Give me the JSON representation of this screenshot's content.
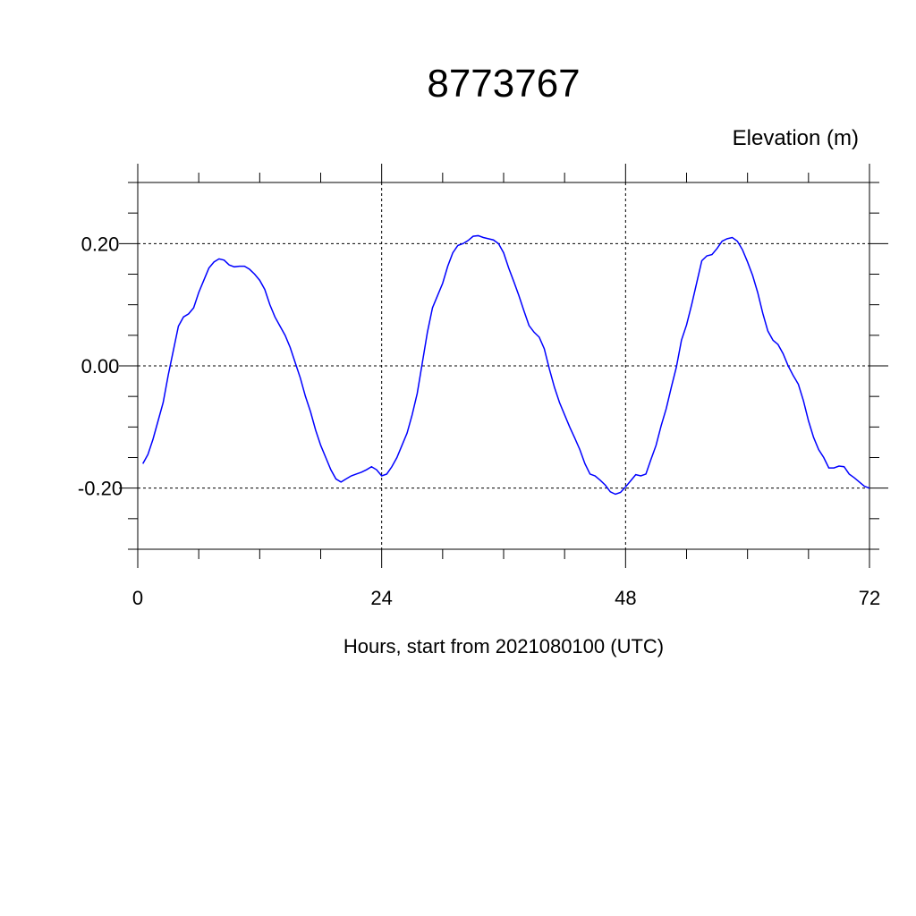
{
  "chart_data": {
    "type": "line",
    "title": "8773767",
    "subtitle": "Elevation (m)",
    "x_label": "Hours, start from 2021080100 (UTC)",
    "xlim": [
      0,
      72
    ],
    "xticks": [
      0,
      24,
      48,
      72
    ],
    "ylim": [
      -0.3,
      0.3
    ],
    "yticks": [
      {
        "value": -0.2,
        "label": "-0.20"
      },
      {
        "value": 0,
        "label": "0.00"
      },
      {
        "value": 0.2,
        "label": "0.20"
      }
    ],
    "grid": true,
    "series": [
      {
        "color": "#0000ff",
        "x": [
          0.5,
          1,
          1.5,
          2,
          2.5,
          3,
          3.5,
          4,
          4.5,
          5,
          5.5,
          6,
          6.5,
          7,
          7.5,
          8,
          8.5,
          9,
          9.5,
          10,
          10.5,
          11,
          11.5,
          12,
          12.5,
          13,
          13.5,
          14,
          14.5,
          15,
          15.5,
          16,
          16.5,
          17,
          17.5,
          18,
          18.5,
          19,
          19.5,
          20,
          20.5,
          21,
          21.5,
          22,
          22.5,
          23,
          23.5,
          24,
          24.5,
          25,
          25.5,
          26,
          26.5,
          27,
          27.5,
          28,
          28.5,
          29,
          29.5,
          30,
          30.5,
          31,
          31.5,
          32,
          32.5,
          33,
          33.5,
          34,
          34.5,
          35,
          35.5,
          36,
          36.5,
          37,
          37.5,
          38,
          38.5,
          39,
          39.5,
          40,
          40.5,
          41,
          41.5,
          42,
          42.5,
          43,
          43.5,
          44,
          44.5,
          45,
          45.5,
          46,
          46.5,
          47,
          47.5,
          48,
          48.5,
          49,
          49.5,
          50,
          50.5,
          51,
          51.5,
          52,
          52.5,
          53,
          53.5,
          54,
          54.5,
          55,
          55.5,
          56,
          56.5,
          57,
          57.5,
          58,
          58.5,
          59,
          59.5,
          60,
          60.5,
          61,
          61.5,
          62,
          62.5,
          63,
          63.5,
          64,
          64.5,
          65,
          65.5,
          66,
          66.5,
          67,
          67.5,
          68,
          68.5,
          69,
          69.5,
          70,
          70.5,
          71,
          71.5,
          72
        ],
        "values": [
          -0.16,
          -0.145,
          -0.12,
          -0.09,
          -0.06,
          -0.015,
          0.025,
          0.065,
          0.08,
          0.085,
          0.095,
          0.12,
          0.14,
          0.16,
          0.17,
          0.175,
          0.173,
          0.165,
          0.162,
          0.163,
          0.163,
          0.158,
          0.15,
          0.14,
          0.125,
          0.1,
          0.08,
          0.065,
          0.05,
          0.03,
          0.005,
          -0.02,
          -0.05,
          -0.075,
          -0.105,
          -0.13,
          -0.15,
          -0.17,
          -0.185,
          -0.19,
          -0.185,
          -0.18,
          -0.177,
          -0.174,
          -0.17,
          -0.165,
          -0.17,
          -0.18,
          -0.177,
          -0.165,
          -0.15,
          -0.13,
          -0.11,
          -0.08,
          -0.045,
          0.005,
          0.055,
          0.095,
          0.115,
          0.135,
          0.163,
          0.185,
          0.197,
          0.2,
          0.205,
          0.212,
          0.213,
          0.21,
          0.208,
          0.206,
          0.2,
          0.185,
          0.16,
          0.138,
          0.115,
          0.09,
          0.066,
          0.055,
          0.047,
          0.028,
          -0.005,
          -0.035,
          -0.06,
          -0.08,
          -0.1,
          -0.118,
          -0.137,
          -0.16,
          -0.177,
          -0.18,
          -0.187,
          -0.195,
          -0.206,
          -0.21,
          -0.207,
          -0.198,
          -0.188,
          -0.178,
          -0.18,
          -0.177,
          -0.153,
          -0.13,
          -0.098,
          -0.07,
          -0.035,
          -0.002,
          0.042,
          0.067,
          0.1,
          0.136,
          0.172,
          0.18,
          0.182,
          0.192,
          0.204,
          0.208,
          0.21,
          0.204,
          0.19,
          0.17,
          0.148,
          0.12,
          0.086,
          0.057,
          0.042,
          0.035,
          0.02,
          0,
          -0.016,
          -0.03,
          -0.057,
          -0.09,
          -0.117,
          -0.137,
          -0.15,
          -0.167,
          -0.167,
          -0.164,
          -0.165,
          -0.177,
          -0.183,
          -0.19,
          -0.197,
          -0.2
        ]
      }
    ]
  }
}
